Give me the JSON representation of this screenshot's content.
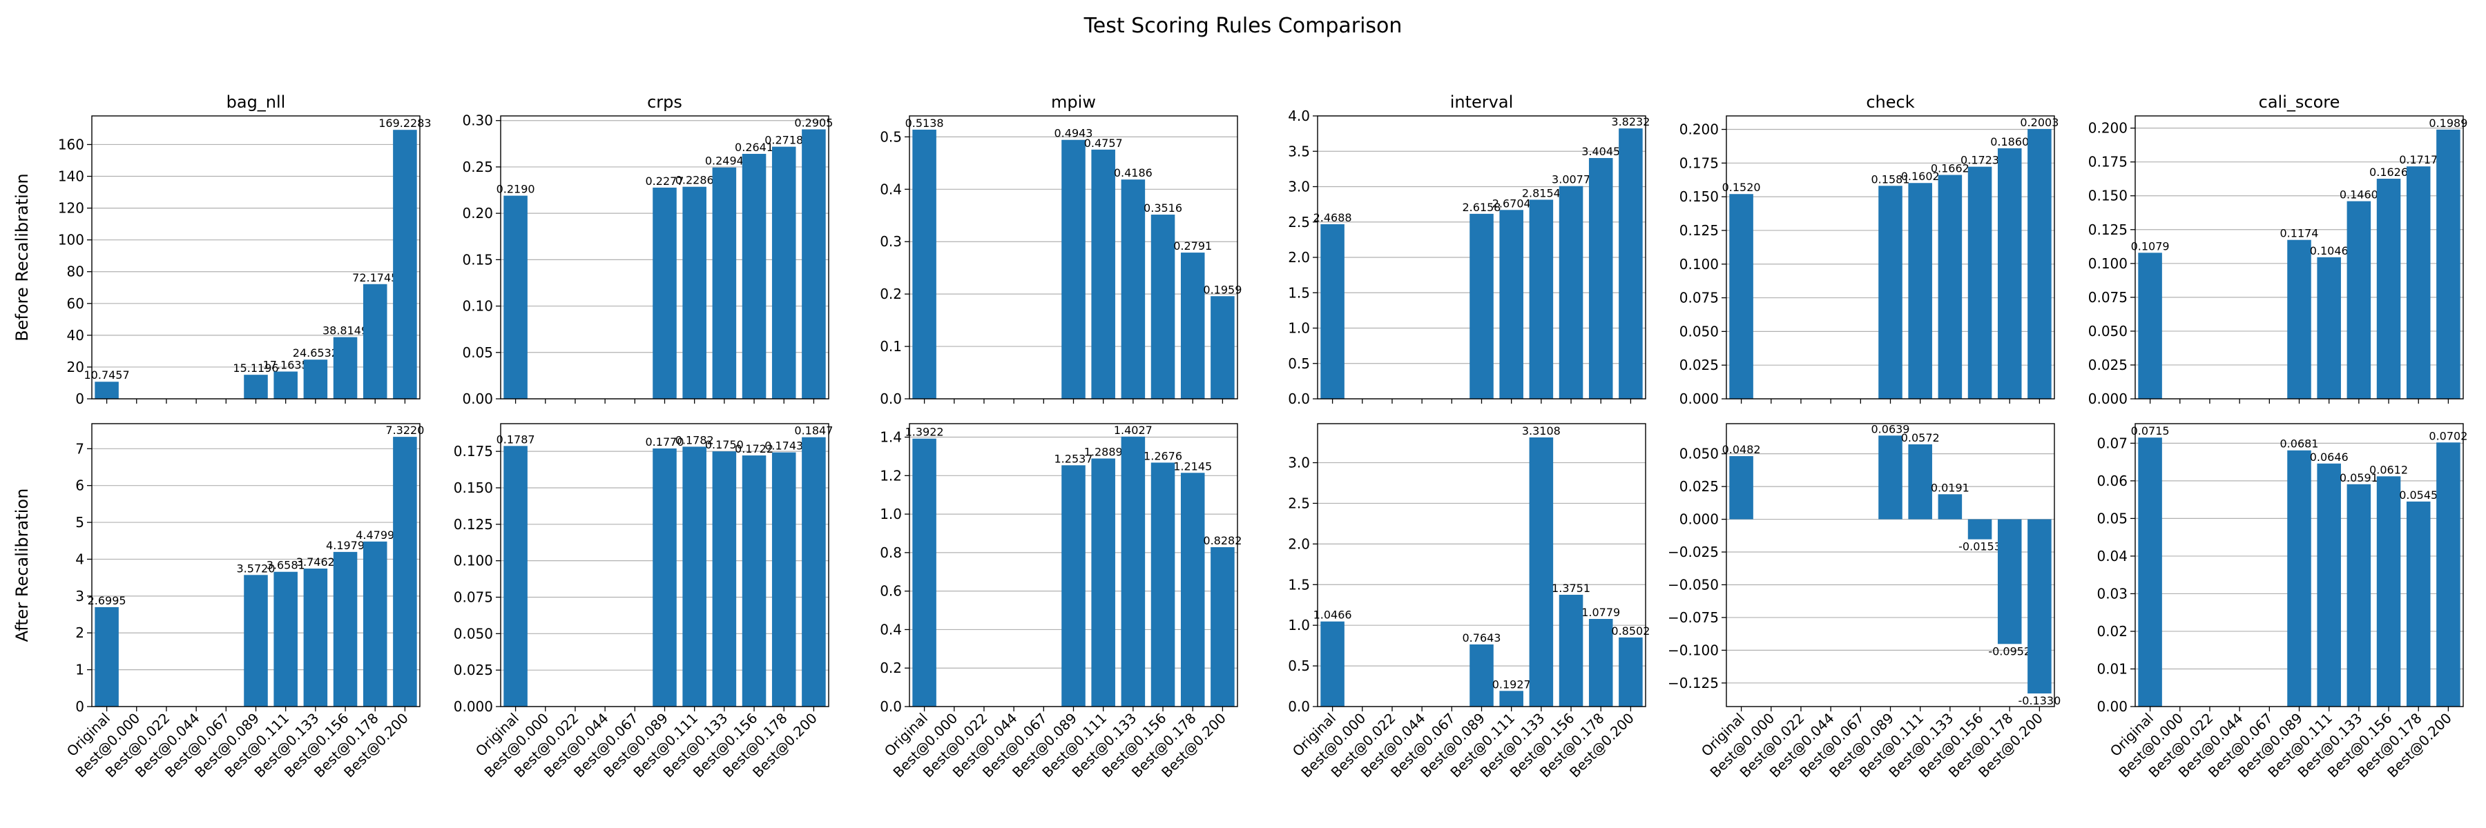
{
  "title": "Test Scoring Rules Comparison",
  "colors": {
    "bar": "#1f77b4",
    "grid": "#b0b0b0",
    "axis": "#000000"
  },
  "categories": [
    "Original",
    "Best@0.000",
    "Best@0.022",
    "Best@0.044",
    "Best@0.067",
    "Best@0.089",
    "Best@0.111",
    "Best@0.133",
    "Best@0.156",
    "Best@0.178",
    "Best@0.200"
  ],
  "row_labels": [
    "Before Recalibration",
    "After Recalibration"
  ],
  "chart_data": [
    {
      "type": "bar",
      "row": 0,
      "col": 0,
      "title": "bag_nll",
      "ylabel": "Before Recalibration",
      "ylim": [
        0,
        178
      ],
      "yticks": [
        0,
        20,
        40,
        60,
        80,
        100,
        120,
        140,
        160
      ],
      "ytick_labels": [
        "0",
        "20",
        "40",
        "60",
        "80",
        "100",
        "120",
        "140",
        "160"
      ],
      "values": [
        10.7457,
        null,
        null,
        null,
        null,
        15.1196,
        17.1635,
        24.6532,
        38.8149,
        72.1745,
        169.2283
      ],
      "labels": [
        "10.7457",
        "",
        "",
        "",
        "",
        "15.1196",
        "17.1635",
        "24.6532",
        "38.8149",
        "72.1745",
        "169.2283"
      ]
    },
    {
      "type": "bar",
      "row": 0,
      "col": 1,
      "title": "crps",
      "ylabel": "",
      "ylim": [
        0,
        0.305
      ],
      "yticks": [
        0,
        0.05,
        0.1,
        0.15,
        0.2,
        0.25,
        0.3
      ],
      "ytick_labels": [
        "0.00",
        "0.05",
        "0.10",
        "0.15",
        "0.20",
        "0.25",
        "0.30"
      ],
      "values": [
        0.219,
        null,
        null,
        null,
        null,
        0.2277,
        0.2286,
        0.2494,
        0.2641,
        0.2718,
        0.2905
      ],
      "labels": [
        "0.2190",
        "",
        "",
        "",
        "",
        "0.2277",
        "0.2286",
        "0.2494",
        "0.2641",
        "0.2718",
        "0.2905"
      ]
    },
    {
      "type": "bar",
      "row": 0,
      "col": 2,
      "title": "mpiw",
      "ylabel": "",
      "ylim": [
        0,
        0.54
      ],
      "yticks": [
        0,
        0.1,
        0.2,
        0.3,
        0.4,
        0.5
      ],
      "ytick_labels": [
        "0.0",
        "0.1",
        "0.2",
        "0.3",
        "0.4",
        "0.5"
      ],
      "values": [
        0.5138,
        null,
        null,
        null,
        null,
        0.4943,
        0.4757,
        0.4186,
        0.3516,
        0.2791,
        0.1959
      ],
      "labels": [
        "0.5138",
        "",
        "",
        "",
        "",
        "0.4943",
        "0.4757",
        "0.4186",
        "0.3516",
        "0.2791",
        "0.1959"
      ]
    },
    {
      "type": "bar",
      "row": 0,
      "col": 3,
      "title": "interval",
      "ylabel": "",
      "ylim": [
        0,
        4.0
      ],
      "yticks": [
        0,
        0.5,
        1,
        1.5,
        2,
        2.5,
        3,
        3.5,
        4
      ],
      "ytick_labels": [
        "0.0",
        "0.5",
        "1.0",
        "1.5",
        "2.0",
        "2.5",
        "3.0",
        "3.5",
        "4.0"
      ],
      "values": [
        2.4688,
        null,
        null,
        null,
        null,
        2.6158,
        2.6704,
        2.8154,
        3.0077,
        3.4045,
        3.8232
      ],
      "labels": [
        "2.4688",
        "",
        "",
        "",
        "",
        "2.6158",
        "2.6704",
        "2.8154",
        "3.0077",
        "3.4045",
        "3.8232"
      ]
    },
    {
      "type": "bar",
      "row": 0,
      "col": 4,
      "title": "check",
      "ylabel": "",
      "ylim": [
        0,
        0.21
      ],
      "yticks": [
        0,
        0.025,
        0.05,
        0.075,
        0.1,
        0.125,
        0.15,
        0.175,
        0.2
      ],
      "ytick_labels": [
        "0.000",
        "0.025",
        "0.050",
        "0.075",
        "0.100",
        "0.125",
        "0.150",
        "0.175",
        "0.200"
      ],
      "values": [
        0.152,
        null,
        null,
        null,
        null,
        0.1581,
        0.1602,
        0.1662,
        0.1723,
        0.186,
        0.2003
      ],
      "labels": [
        "0.1520",
        "",
        "",
        "",
        "",
        "0.1581",
        "0.1602",
        "0.1662",
        "0.1723",
        "0.1860",
        "0.2003"
      ]
    },
    {
      "type": "bar",
      "row": 0,
      "col": 5,
      "title": "cali_score",
      "ylabel": "",
      "ylim": [
        0,
        0.209
      ],
      "yticks": [
        0,
        0.025,
        0.05,
        0.075,
        0.1,
        0.125,
        0.15,
        0.175,
        0.2
      ],
      "ytick_labels": [
        "0.000",
        "0.025",
        "0.050",
        "0.075",
        "0.100",
        "0.125",
        "0.150",
        "0.175",
        "0.200"
      ],
      "values": [
        0.1079,
        null,
        null,
        null,
        null,
        0.1174,
        0.1046,
        0.146,
        0.1626,
        0.1717,
        0.1989
      ],
      "labels": [
        "0.1079",
        "",
        "",
        "",
        "",
        "0.1174",
        "0.1046",
        "0.1460",
        "0.1626",
        "0.1717",
        "0.1989"
      ]
    },
    {
      "type": "bar",
      "row": 1,
      "col": 0,
      "title": "",
      "ylabel": "After Recalibration",
      "ylim": [
        0,
        7.68
      ],
      "yticks": [
        0,
        1,
        2,
        3,
        4,
        5,
        6,
        7
      ],
      "ytick_labels": [
        "0",
        "1",
        "2",
        "3",
        "4",
        "5",
        "6",
        "7"
      ],
      "values": [
        2.6995,
        null,
        null,
        null,
        null,
        3.572,
        3.6581,
        3.7462,
        4.1979,
        4.4799,
        7.322
      ],
      "labels": [
        "2.6995",
        "",
        "",
        "",
        "",
        "3.5720",
        "3.6581",
        "3.7462",
        "4.1979",
        "4.4799",
        "7.3220"
      ]
    },
    {
      "type": "bar",
      "row": 1,
      "col": 1,
      "title": "",
      "ylabel": "",
      "ylim": [
        0,
        0.194
      ],
      "yticks": [
        0,
        0.025,
        0.05,
        0.075,
        0.1,
        0.125,
        0.15,
        0.175
      ],
      "ytick_labels": [
        "0.000",
        "0.025",
        "0.050",
        "0.075",
        "0.100",
        "0.125",
        "0.150",
        "0.175"
      ],
      "values": [
        0.1787,
        null,
        null,
        null,
        null,
        0.177,
        0.1782,
        0.175,
        0.1722,
        0.1743,
        0.1847
      ],
      "labels": [
        "0.1787",
        "",
        "",
        "",
        "",
        "0.1770",
        "0.1782",
        "0.1750",
        "0.1722",
        "0.1743",
        "0.1847"
      ]
    },
    {
      "type": "bar",
      "row": 1,
      "col": 2,
      "title": "",
      "ylabel": "",
      "ylim": [
        0,
        1.47
      ],
      "yticks": [
        0,
        0.2,
        0.4,
        0.6,
        0.8,
        1.0,
        1.2,
        1.4
      ],
      "ytick_labels": [
        "0.0",
        "0.2",
        "0.4",
        "0.6",
        "0.8",
        "1.0",
        "1.2",
        "1.4"
      ],
      "values": [
        1.3922,
        null,
        null,
        null,
        null,
        1.2537,
        1.2889,
        1.4027,
        1.2676,
        1.2145,
        0.8282
      ],
      "labels": [
        "1.3922",
        "",
        "",
        "",
        "",
        "1.2537",
        "1.2889",
        "1.4027",
        "1.2676",
        "1.2145",
        "0.8282"
      ]
    },
    {
      "type": "bar",
      "row": 1,
      "col": 3,
      "title": "",
      "ylabel": "",
      "ylim": [
        0,
        3.48
      ],
      "yticks": [
        0,
        0.5,
        1,
        1.5,
        2,
        2.5,
        3
      ],
      "ytick_labels": [
        "0.0",
        "0.5",
        "1.0",
        "1.5",
        "2.0",
        "2.5",
        "3.0"
      ],
      "values": [
        1.0466,
        null,
        null,
        null,
        null,
        0.7643,
        0.1927,
        3.3108,
        1.3751,
        1.0779,
        0.8502
      ],
      "labels": [
        "1.0466",
        "",
        "",
        "",
        "",
        "0.7643",
        "0.1927",
        "3.3108",
        "1.3751",
        "1.0779",
        "0.8502"
      ]
    },
    {
      "type": "bar",
      "row": 1,
      "col": 4,
      "title": "",
      "ylabel": "",
      "ylim": [
        -0.143,
        0.073
      ],
      "yticks": [
        -0.125,
        -0.1,
        -0.075,
        -0.05,
        -0.025,
        0,
        0.025,
        0.05
      ],
      "ytick_labels": [
        "−0.125",
        "−0.100",
        "−0.075",
        "−0.050",
        "−0.025",
        "0.000",
        "0.025",
        "0.050"
      ],
      "values": [
        0.0482,
        null,
        null,
        null,
        null,
        0.0639,
        0.0572,
        0.0191,
        -0.0153,
        -0.0952,
        -0.133
      ],
      "labels": [
        "0.0482",
        "",
        "",
        "",
        "",
        "0.0639",
        "0.0572",
        "0.0191",
        "-0.0153",
        "-0.0952",
        "-0.1330"
      ]
    },
    {
      "type": "bar",
      "row": 1,
      "col": 5,
      "title": "",
      "ylabel": "",
      "ylim": [
        0,
        0.0752
      ],
      "yticks": [
        0,
        0.01,
        0.02,
        0.03,
        0.04,
        0.05,
        0.06,
        0.07
      ],
      "ytick_labels": [
        "0.00",
        "0.01",
        "0.02",
        "0.03",
        "0.04",
        "0.05",
        "0.06",
        "0.07"
      ],
      "values": [
        0.0715,
        null,
        null,
        null,
        null,
        0.0681,
        0.0646,
        0.0591,
        0.0612,
        0.0545,
        0.0702
      ],
      "labels": [
        "0.0715",
        "",
        "",
        "",
        "",
        "0.0681",
        "0.0646",
        "0.0591",
        "0.0612",
        "0.0545",
        "0.0702"
      ]
    }
  ]
}
